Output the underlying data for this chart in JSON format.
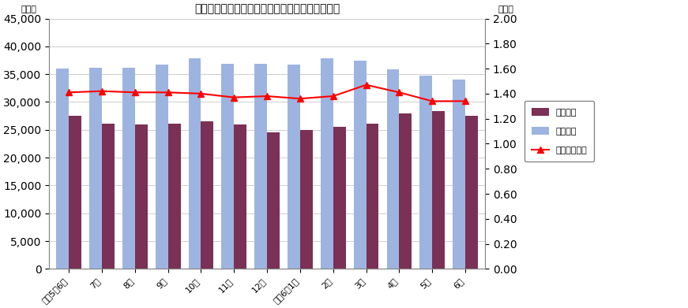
{
  "title": "有効求職・求人・求人倍率（季節調整値）の推移",
  "categories": [
    "令和5年6月",
    "7月",
    "8月",
    "9月",
    "10月",
    "11月",
    "12月",
    "令和6年1月",
    "2月",
    "3月",
    "4月",
    "5月",
    "6月"
  ],
  "yukyu_kyushoku": [
    27500,
    26100,
    26000,
    26100,
    26500,
    26000,
    24600,
    25000,
    25500,
    26100,
    28000,
    28400,
    27500
  ],
  "yukyu_kyujin": [
    36000,
    36100,
    36200,
    36700,
    37800,
    36900,
    36900,
    36700,
    37900,
    37400,
    35800,
    34800,
    34100
  ],
  "kyujin_bairitsu": [
    1.41,
    1.42,
    1.41,
    1.41,
    1.4,
    1.37,
    1.38,
    1.36,
    1.38,
    1.47,
    1.41,
    1.34,
    1.34
  ],
  "bar_color_kyushoku": "#7B3055",
  "bar_color_kyujin": "#9DB4E0",
  "line_color": "#FF0000",
  "ylabel_left": "（人）",
  "ylabel_right": "（倍）",
  "ylim_left": [
    0,
    45000
  ],
  "ylim_right": [
    0.0,
    2.0
  ],
  "yticks_left": [
    0,
    5000,
    10000,
    15000,
    20000,
    25000,
    30000,
    35000,
    40000,
    45000
  ],
  "yticks_right": [
    0.0,
    0.2,
    0.4,
    0.6,
    0.8,
    1.0,
    1.2,
    1.4,
    1.6,
    1.8,
    2.0
  ],
  "legend_labels": [
    "有効求職",
    "有効求人",
    "有効求人倍率"
  ],
  "background_color": "#FFFFFF",
  "grid_color": "#BBBBBB",
  "bar_width": 0.38
}
